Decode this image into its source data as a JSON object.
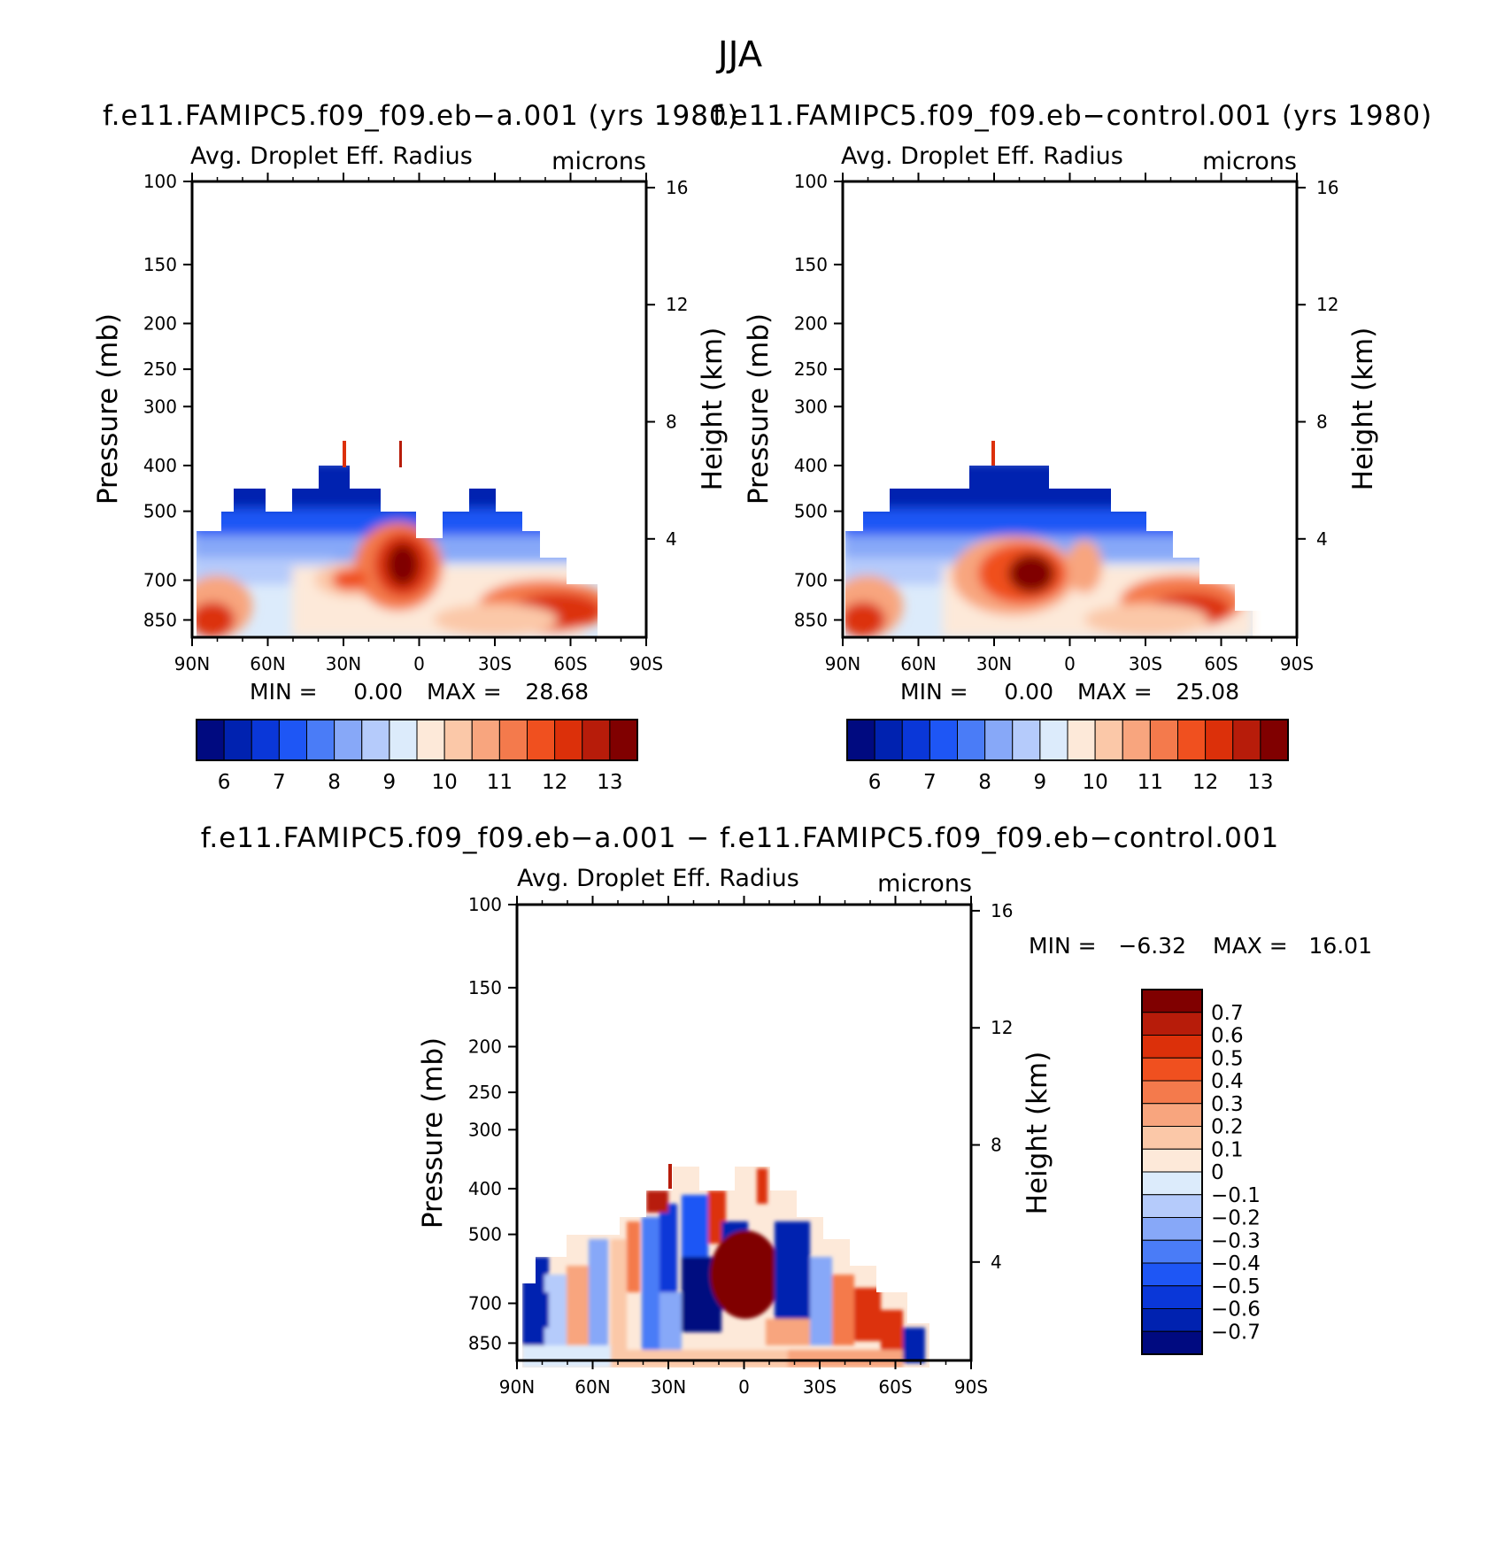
{
  "figure_title": "JJA",
  "colors": {
    "seq": [
      "#000a80",
      "#0022b0",
      "#0a37d8",
      "#1e56f5",
      "#4a7cf7",
      "#87a8f8",
      "#b5cbfb",
      "#dcebfb",
      "#fde9d9",
      "#fbc8a8",
      "#f8a57e",
      "#f47a4c",
      "#f0501f",
      "#dc300a",
      "#b71c0a",
      "#800000"
    ],
    "div": [
      "#000a80",
      "#0022b0",
      "#0a37d8",
      "#1e56f5",
      "#4a7cf7",
      "#87a8f8",
      "#b5cbfb",
      "#dcebfb",
      "#fde9d9",
      "#fbc8a8",
      "#f8a57e",
      "#f47a4c",
      "#f0501f",
      "#dc300a",
      "#b71c0a",
      "#800000"
    ]
  },
  "panels": {
    "a": {
      "case_title": "f.e11.FAMIPC5.f09_f09.eb−a.001 (yrs 1980)",
      "variable": "Avg. Droplet Eff. Radius",
      "units": "microns",
      "min_label": "MIN =",
      "min_value": "0.00",
      "max_label": "MAX =",
      "max_value": "28.68"
    },
    "b": {
      "case_title": "f.e11.FAMIPC5.f09_f09.eb−control.001 (yrs 1980)",
      "variable": "Avg. Droplet Eff. Radius",
      "units": "microns",
      "min_label": "MIN =",
      "min_value": "0.00",
      "max_label": "MAX =",
      "max_value": "25.08"
    },
    "diff": {
      "case_title": "f.e11.FAMIPC5.f09_f09.eb−a.001 − f.e11.FAMIPC5.f09_f09.eb−control.001",
      "variable": "Avg. Droplet Eff. Radius",
      "units": "microns",
      "min_label": "MIN =",
      "min_value": "−6.32",
      "max_label": "MAX =",
      "max_value": "16.01"
    }
  },
  "chart_data": [
    {
      "type": "heatmap",
      "title": "Avg. Droplet Eff. Radius",
      "subtitle": "f.e11.FAMIPC5.f09_f09.eb−a.001 (yrs 1980)",
      "xlabel": "",
      "ylabel": "Pressure (mb)",
      "y2label": "Height (km)",
      "x_ticks": [
        "90N",
        "60N",
        "30N",
        "0",
        "30S",
        "60S",
        "90S"
      ],
      "y_ticks": [
        100,
        150,
        200,
        250,
        300,
        400,
        500,
        700,
        850
      ],
      "y2_ticks": [
        4,
        8,
        12,
        16
      ],
      "ylim": [
        925,
        100
      ],
      "colorbar_ticks": [
        "6",
        "7",
        "8",
        "9",
        "10",
        "11",
        "12",
        "13"
      ],
      "min": 0.0,
      "max": 28.68
    },
    {
      "type": "heatmap",
      "title": "Avg. Droplet Eff. Radius",
      "subtitle": "f.e11.FAMIPC5.f09_f09.eb−control.001 (yrs 1980)",
      "xlabel": "",
      "ylabel": "Pressure (mb)",
      "y2label": "Height (km)",
      "x_ticks": [
        "90N",
        "60N",
        "30N",
        "0",
        "30S",
        "60S",
        "90S"
      ],
      "y_ticks": [
        100,
        150,
        200,
        250,
        300,
        400,
        500,
        700,
        850
      ],
      "y2_ticks": [
        4,
        8,
        12,
        16
      ],
      "ylim": [
        925,
        100
      ],
      "colorbar_ticks": [
        "6",
        "7",
        "8",
        "9",
        "10",
        "11",
        "12",
        "13"
      ],
      "min": 0.0,
      "max": 25.08
    },
    {
      "type": "heatmap",
      "title": "Avg. Droplet Eff. Radius",
      "subtitle": "f.e11.FAMIPC5.f09_f09.eb−a.001 − f.e11.FAMIPC5.f09_f09.eb−control.001",
      "xlabel": "",
      "ylabel": "Pressure (mb)",
      "y2label": "Height (km)",
      "x_ticks": [
        "90N",
        "60N",
        "30N",
        "0",
        "30S",
        "60S",
        "90S"
      ],
      "y_ticks": [
        100,
        150,
        200,
        250,
        300,
        400,
        500,
        700,
        850
      ],
      "y2_ticks": [
        4,
        8,
        12,
        16
      ],
      "ylim": [
        925,
        100
      ],
      "colorbar_ticks": [
        "0.7",
        "0.6",
        "0.5",
        "0.4",
        "0.3",
        "0.2",
        "0.1",
        "0",
        "−0.1",
        "−0.2",
        "−0.3",
        "−0.4",
        "−0.5",
        "−0.6",
        "−0.7"
      ],
      "min": -6.32,
      "max": 16.01
    }
  ]
}
